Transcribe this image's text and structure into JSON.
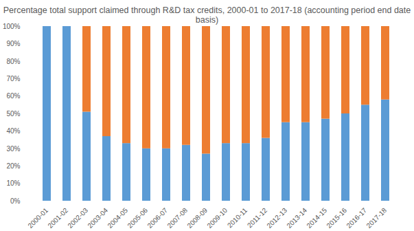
{
  "chart_data": {
    "type": "bar",
    "stacked": true,
    "title": "Percentage total support claimed through R&D tax credits, 2000-01 to 2017-18 (accounting period end date basis)",
    "categories": [
      "2000-01",
      "2001-02",
      "2002-03",
      "2003-04",
      "2004-05",
      "2005-06",
      "2006-07",
      "2007-08",
      "2008-09",
      "2009-10",
      "2010-11",
      "2011-12",
      "2012-13",
      "2013-14",
      "2014-15",
      "2015-16",
      "2016-17",
      "2017-18"
    ],
    "series": [
      {
        "color": "#5b9bd5",
        "values": [
          100,
          100,
          51,
          37,
          33,
          30,
          30,
          32,
          27,
          33,
          33,
          36,
          45,
          45,
          47,
          50,
          55,
          58
        ]
      },
      {
        "color": "#ed7d31",
        "values": [
          0,
          0,
          49,
          63,
          67,
          70,
          70,
          68,
          73,
          67,
          67,
          64,
          55,
          55,
          53,
          50,
          45,
          42
        ]
      }
    ],
    "ylim": [
      0,
      100
    ],
    "yticks": [
      {
        "value": 0,
        "label": "0%"
      },
      {
        "value": 10,
        "label": "10%"
      },
      {
        "value": 20,
        "label": "20%"
      },
      {
        "value": 30,
        "label": "30%"
      },
      {
        "value": 40,
        "label": "40%"
      },
      {
        "value": 50,
        "label": "50%"
      },
      {
        "value": 60,
        "label": "60%"
      },
      {
        "value": 70,
        "label": "70%"
      },
      {
        "value": 80,
        "label": "80%"
      },
      {
        "value": 90,
        "label": "90%"
      },
      {
        "value": 100,
        "label": "100%"
      }
    ],
    "grid": false
  }
}
